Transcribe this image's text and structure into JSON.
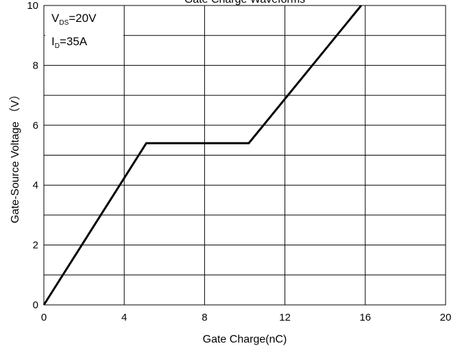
{
  "chart_data": {
    "type": "line",
    "title": "Gate Charge Waveforms",
    "xlabel": "Gate Charge(nC)",
    "ylabel": "Gate-Source Voltage （V）",
    "xlim": [
      0,
      20
    ],
    "ylim": [
      0,
      10
    ],
    "x_ticks": [
      "0",
      "4",
      "8",
      "12",
      "16",
      "20"
    ],
    "y_ticks": [
      "0",
      "2",
      "4",
      "6",
      "8",
      "10"
    ],
    "grid": true,
    "series": [
      {
        "x": [
          0,
          5.1,
          10.2,
          15.8
        ],
        "y": [
          0,
          5.4,
          5.4,
          10
        ],
        "color": "#000000"
      }
    ],
    "annotations": {
      "vds": {
        "main": "V",
        "sub": "DS",
        "rest": "=20V"
      },
      "id": {
        "main": "I",
        "sub": "D",
        "rest": "=35A"
      }
    }
  }
}
